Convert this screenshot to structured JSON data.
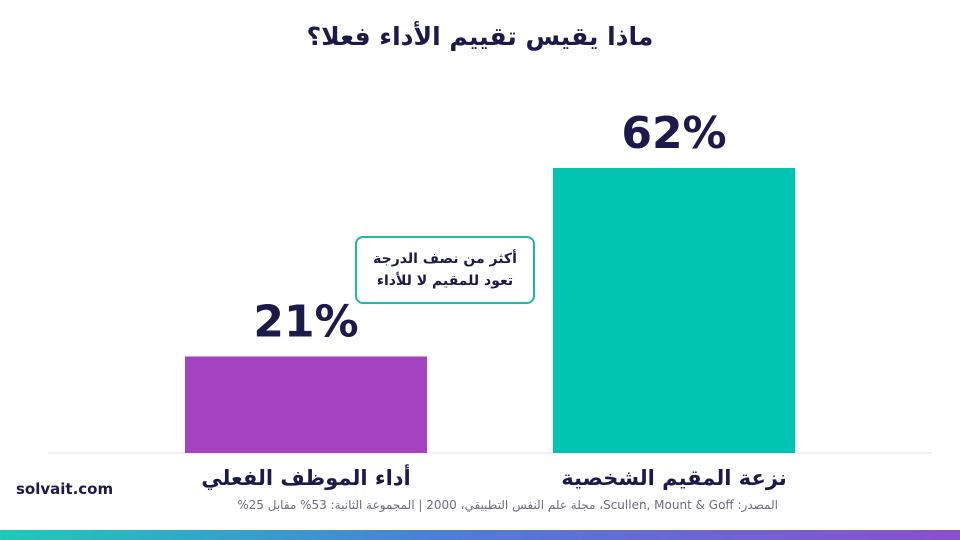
{
  "title": "ماذا يقيس تقييم الأداء فعلا؟",
  "callout": {
    "line1": "أكثر من نصف الدرجة",
    "line2": "تعود للمقيم لا للأداء"
  },
  "logo": "solvait.com",
  "source": "المصدر: Scullen, Mount & Goff، مجلة علم النفس التطبيقي، 2000  |  المجموعة الثانية: 53% مقابل 25%",
  "colors": {
    "bar_left": "#a442c1",
    "bar_right": "#00c4b2",
    "text": "#1c1a4a",
    "accent": "#1fb8a4"
  },
  "chart_data": {
    "type": "bar",
    "categories": [
      "أداء الموظف الفعلي",
      "نزعة المقيم الشخصية"
    ],
    "values": [
      21,
      62
    ],
    "data_labels": [
      "21%",
      "62%"
    ],
    "ylim": [
      0,
      62
    ],
    "grid": false,
    "colors": [
      "#a442c1",
      "#00c4b2"
    ]
  }
}
